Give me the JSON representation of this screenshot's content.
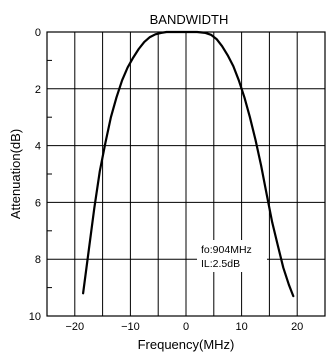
{
  "chart_data": {
    "type": "line",
    "title": "BANDWIDTH",
    "xlabel": "Frequency(MHz)",
    "ylabel": "Attenuation(dB)",
    "xlim": [
      -25,
      25
    ],
    "ylim": [
      0,
      10
    ],
    "y_inverted": true,
    "grid": true,
    "x_ticks": [
      -20,
      -10,
      0,
      10,
      20
    ],
    "x_tick_labels": [
      "−20",
      "−10",
      "0",
      "10",
      "20"
    ],
    "y_ticks": [
      0,
      2,
      4,
      6,
      8,
      10
    ],
    "y_tick_labels": [
      "0",
      "2",
      "4",
      "6",
      "8",
      "10"
    ],
    "annotation": [
      "fo:904MHz",
      "IL:2.5dB"
    ],
    "series": [
      {
        "x": [
          -18.5,
          -17.5,
          -16.5,
          -15.5,
          -14.5,
          -13.5,
          -12.5,
          -11.5,
          -10.5,
          -9.5,
          -8.5,
          -7.5,
          -6.5,
          -5.5,
          -4.5,
          -3.5,
          -2.0,
          0.0,
          2.0,
          3.5,
          4.5,
          5.5,
          6.5,
          7.5,
          8.5,
          9.5,
          10.5,
          11.5,
          12.5,
          13.5,
          14.5,
          15.5,
          16.5,
          17.5,
          18.5,
          19.3
        ],
        "y": [
          9.2,
          7.7,
          6.2,
          4.9,
          3.9,
          3.0,
          2.3,
          1.7,
          1.25,
          0.9,
          0.6,
          0.35,
          0.18,
          0.08,
          0.03,
          0.0,
          0.0,
          0.0,
          0.0,
          0.03,
          0.1,
          0.25,
          0.5,
          0.82,
          1.2,
          1.7,
          2.3,
          3.0,
          3.8,
          4.7,
          5.7,
          6.7,
          7.5,
          8.3,
          8.9,
          9.3
        ]
      }
    ]
  }
}
